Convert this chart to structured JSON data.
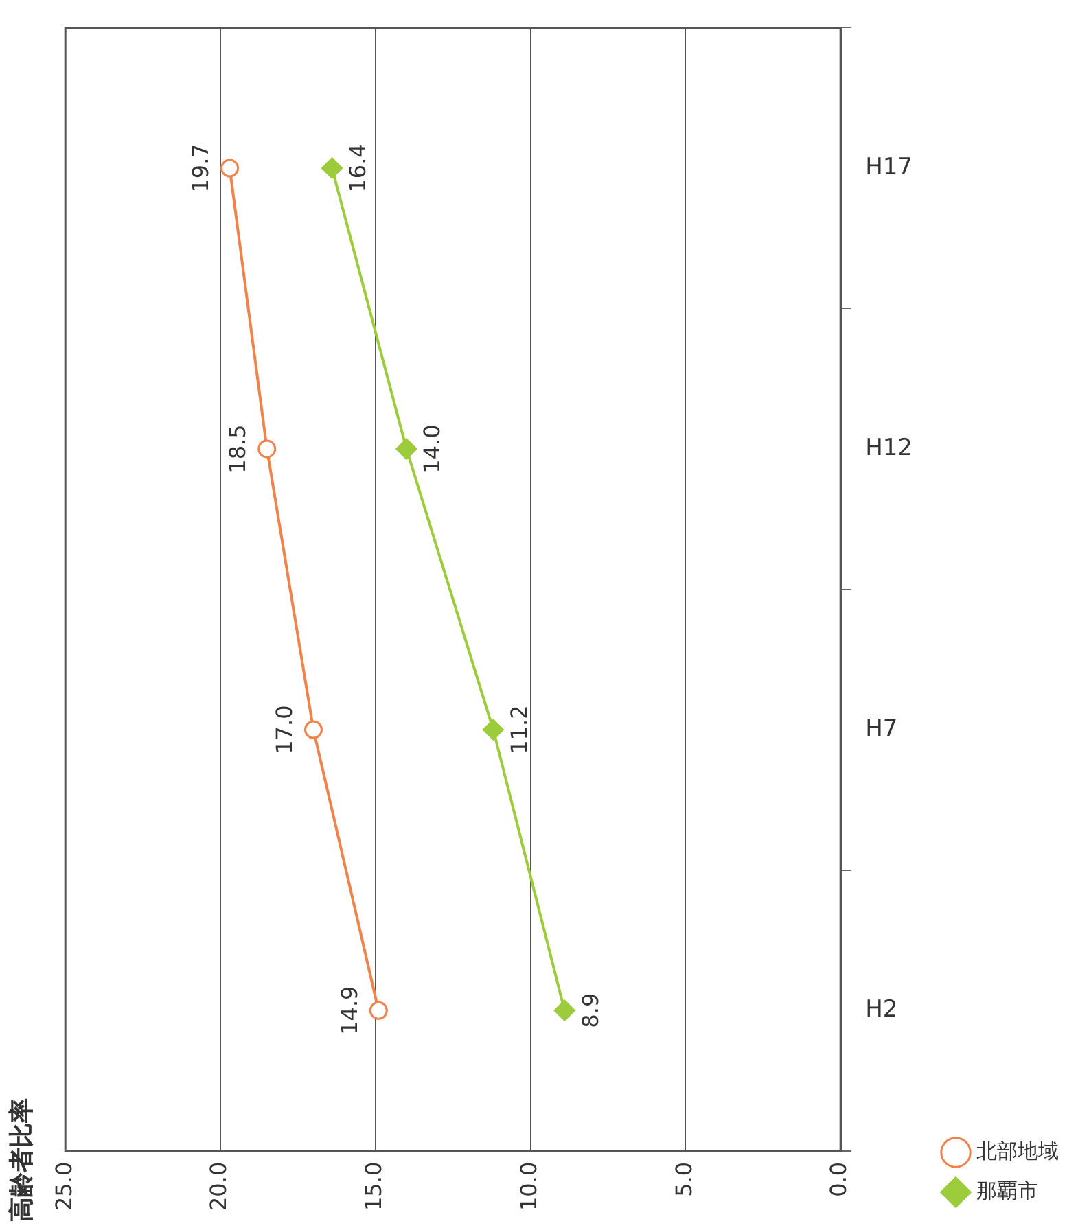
{
  "chart_data": {
    "type": "line",
    "orientation": "horizontal",
    "title": "高齢者比率",
    "categories": [
      "H17",
      "H12",
      "H7",
      "H2"
    ],
    "series": [
      {
        "name": "北部地域",
        "color": "#f0824a",
        "marker": "circle",
        "values": [
          19.7,
          18.5,
          17.0,
          14.9
        ],
        "value_labels": [
          "19.7",
          "18.5",
          "17.0",
          "14.9"
        ]
      },
      {
        "name": "那覇市",
        "color": "#9ccc3c",
        "marker": "diamond",
        "values": [
          16.4,
          14.0,
          11.2,
          8.9
        ],
        "value_labels": [
          "16.4",
          "14.0",
          "11.2",
          "8.9"
        ]
      }
    ],
    "xlim": [
      25,
      0
    ],
    "xticks": [
      {
        "value": 25,
        "label": "25.0"
      },
      {
        "value": 20,
        "label": "20.0"
      },
      {
        "value": 15,
        "label": "15.0"
      },
      {
        "value": 10,
        "label": "10.0"
      },
      {
        "value": 5,
        "label": "5.0"
      },
      {
        "value": 0,
        "label": "0.0"
      }
    ],
    "grid": "x",
    "legend": "bottom right"
  }
}
